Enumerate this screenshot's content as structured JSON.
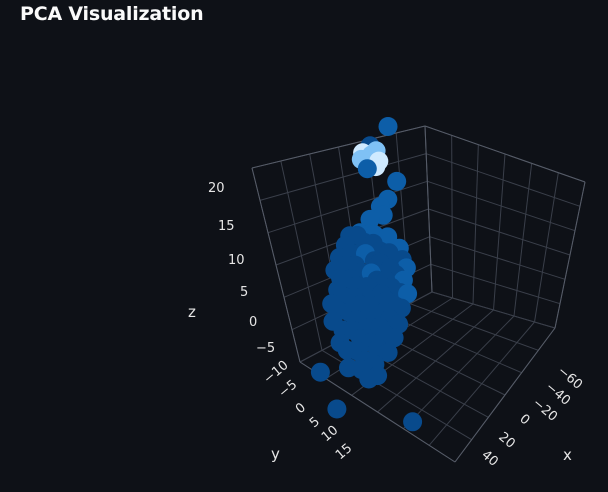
{
  "page": {
    "title": "PCA Visualization"
  },
  "colors": {
    "background": "#0e1117",
    "point_dark": "#084a8c",
    "point_mid": "#0d5ea8",
    "point_light": "#7fc1f5",
    "point_lightest": "#cfeaff"
  },
  "chart_data": {
    "type": "scatter",
    "projection": "3d",
    "title": "",
    "xlabel": "x",
    "ylabel": "y",
    "zlabel": "z",
    "x_ticks": [
      "−60",
      "−40",
      "−20",
      "0",
      "20",
      "40"
    ],
    "y_ticks": [
      "−10",
      "−5",
      "0",
      "5",
      "10",
      "15"
    ],
    "z_ticks": [
      "20",
      "15",
      "10",
      "5",
      "0",
      "−5"
    ],
    "xlim": [
      -65,
      45
    ],
    "ylim": [
      -12,
      18
    ],
    "zlim": [
      -8,
      22
    ],
    "grid": true,
    "legend": "none",
    "points": [
      {
        "x": 0,
        "y": 0,
        "z": 22.5,
        "shade": "mid"
      },
      {
        "x": -10,
        "y": 4,
        "z": 18.5,
        "shade": "light"
      },
      {
        "x": -8,
        "y": 3,
        "z": 19.0,
        "shade": "light"
      },
      {
        "x": -6,
        "y": 2,
        "z": 19.5,
        "shade": "light"
      },
      {
        "x": -4,
        "y": 4,
        "z": 18.0,
        "shade": "lightest"
      },
      {
        "x": -12,
        "y": 5,
        "z": 19.2,
        "shade": "lightest"
      },
      {
        "x": -9,
        "y": 3,
        "z": 20.0,
        "shade": "dark"
      },
      {
        "x": -14,
        "y": 4,
        "z": 18.2,
        "shade": "light"
      },
      {
        "x": -3,
        "y": 3,
        "z": 18.6,
        "shade": "lightest"
      },
      {
        "x": -11,
        "y": 3,
        "z": 17.2,
        "shade": "mid"
      },
      {
        "x": 6,
        "y": 0,
        "z": 16.5,
        "shade": "mid"
      },
      {
        "x": 1,
        "y": 1,
        "z": 14.2,
        "shade": "mid"
      },
      {
        "x": -3,
        "y": 2,
        "z": 13.2,
        "shade": "mid"
      },
      {
        "x": 0,
        "y": 3,
        "z": 12.5,
        "shade": "mid"
      },
      {
        "x": -8,
        "y": 4,
        "z": 11.6,
        "shade": "mid"
      },
      {
        "x": -9,
        "y": 4,
        "z": 9.8,
        "shade": "mid"
      },
      {
        "x": -15,
        "y": 4,
        "z": 9.6,
        "shade": "mid"
      },
      {
        "x": -4,
        "y": 5,
        "z": 10.2,
        "shade": "mid"
      },
      {
        "x": 2,
        "y": 2,
        "z": 10.0,
        "shade": "mid"
      },
      {
        "x": 10,
        "y": 2,
        "z": 9.2,
        "shade": "mid"
      },
      {
        "x": -22,
        "y": 4,
        "z": 8.8,
        "shade": "dark"
      },
      {
        "x": -18,
        "y": 3,
        "z": 9.0,
        "shade": "dark"
      },
      {
        "x": -13,
        "y": 3,
        "z": 8.5,
        "shade": "dark"
      },
      {
        "x": -8,
        "y": 2,
        "z": 8.6,
        "shade": "dark"
      },
      {
        "x": -2,
        "y": 3,
        "z": 8.2,
        "shade": "dark"
      },
      {
        "x": 4,
        "y": 3,
        "z": 8.4,
        "shade": "dark"
      },
      {
        "x": 12,
        "y": 2,
        "z": 8.0,
        "shade": "dark"
      },
      {
        "x": 16,
        "y": 3,
        "z": 7.4,
        "shade": "mid"
      },
      {
        "x": -25,
        "y": 4,
        "z": 7.5,
        "shade": "dark"
      },
      {
        "x": -20,
        "y": 5,
        "z": 7.0,
        "shade": "dark"
      },
      {
        "x": -15,
        "y": 4,
        "z": 7.2,
        "shade": "dark"
      },
      {
        "x": -10,
        "y": 5,
        "z": 7.6,
        "shade": "mid"
      },
      {
        "x": -5,
        "y": 4,
        "z": 7.0,
        "shade": "dark"
      },
      {
        "x": 0,
        "y": 5,
        "z": 7.2,
        "shade": "dark"
      },
      {
        "x": 6,
        "y": 4,
        "z": 6.8,
        "shade": "dark"
      },
      {
        "x": 11,
        "y": 5,
        "z": 6.5,
        "shade": "dark"
      },
      {
        "x": 15,
        "y": 4,
        "z": 6.0,
        "shade": "mid"
      },
      {
        "x": -28,
        "y": 5,
        "z": 6.0,
        "shade": "dark"
      },
      {
        "x": -22,
        "y": 6,
        "z": 5.6,
        "shade": "dark"
      },
      {
        "x": -17,
        "y": 5,
        "z": 5.8,
        "shade": "dark"
      },
      {
        "x": -12,
        "y": 6,
        "z": 5.4,
        "shade": "dark"
      },
      {
        "x": -6,
        "y": 5,
        "z": 5.6,
        "shade": "mid"
      },
      {
        "x": -1,
        "y": 6,
        "z": 5.2,
        "shade": "dark"
      },
      {
        "x": 4,
        "y": 5,
        "z": 5.4,
        "shade": "dark"
      },
      {
        "x": 9,
        "y": 6,
        "z": 5.0,
        "shade": "dark"
      },
      {
        "x": 14,
        "y": 5,
        "z": 4.6,
        "shade": "dark"
      },
      {
        "x": 19,
        "y": 5,
        "z": 4.8,
        "shade": "mid"
      },
      {
        "x": -30,
        "y": 6,
        "z": 4.5,
        "shade": "dark"
      },
      {
        "x": -25,
        "y": 7,
        "z": 4.0,
        "shade": "dark"
      },
      {
        "x": -19,
        "y": 6,
        "z": 4.2,
        "shade": "dark"
      },
      {
        "x": -14,
        "y": 7,
        "z": 3.8,
        "shade": "dark"
      },
      {
        "x": -8,
        "y": 6,
        "z": 4.0,
        "shade": "dark"
      },
      {
        "x": -3,
        "y": 7,
        "z": 3.6,
        "shade": "dark"
      },
      {
        "x": 2,
        "y": 6,
        "z": 3.8,
        "shade": "dark"
      },
      {
        "x": 7,
        "y": 7,
        "z": 3.4,
        "shade": "dark"
      },
      {
        "x": 12,
        "y": 6,
        "z": 3.0,
        "shade": "dark"
      },
      {
        "x": 17,
        "y": 7,
        "z": 3.2,
        "shade": "dark"
      },
      {
        "x": -27,
        "y": 7,
        "z": 2.5,
        "shade": "dark"
      },
      {
        "x": -21,
        "y": 8,
        "z": 2.2,
        "shade": "dark"
      },
      {
        "x": -16,
        "y": 7,
        "z": 2.4,
        "shade": "dark"
      },
      {
        "x": -10,
        "y": 8,
        "z": 2.0,
        "shade": "dark"
      },
      {
        "x": -5,
        "y": 7,
        "z": 2.2,
        "shade": "dark"
      },
      {
        "x": 0,
        "y": 8,
        "z": 1.8,
        "shade": "dark"
      },
      {
        "x": 5,
        "y": 7,
        "z": 2.0,
        "shade": "dark"
      },
      {
        "x": 10,
        "y": 8,
        "z": 1.6,
        "shade": "dark"
      },
      {
        "x": 15,
        "y": 7,
        "z": 1.2,
        "shade": "dark"
      },
      {
        "x": -30,
        "y": 8,
        "z": 0.8,
        "shade": "dark"
      },
      {
        "x": -24,
        "y": 9,
        "z": 0.5,
        "shade": "dark"
      },
      {
        "x": -18,
        "y": 8,
        "z": 0.6,
        "shade": "dark"
      },
      {
        "x": -12,
        "y": 9,
        "z": 0.2,
        "shade": "dark"
      },
      {
        "x": -7,
        "y": 8,
        "z": 0.4,
        "shade": "dark"
      },
      {
        "x": -2,
        "y": 9,
        "z": 0.0,
        "shade": "dark"
      },
      {
        "x": 3,
        "y": 8,
        "z": 0.2,
        "shade": "dark"
      },
      {
        "x": 8,
        "y": 9,
        "z": -0.2,
        "shade": "dark"
      },
      {
        "x": 13,
        "y": 8,
        "z": -0.4,
        "shade": "dark"
      },
      {
        "x": -28,
        "y": 9,
        "z": -1.0,
        "shade": "dark"
      },
      {
        "x": -20,
        "y": 10,
        "z": -1.4,
        "shade": "dark"
      },
      {
        "x": -14,
        "y": 9,
        "z": -1.2,
        "shade": "dark"
      },
      {
        "x": -8,
        "y": 10,
        "z": -1.6,
        "shade": "dark"
      },
      {
        "x": -2,
        "y": 9,
        "z": -1.8,
        "shade": "dark"
      },
      {
        "x": 4,
        "y": 10,
        "z": -2.0,
        "shade": "dark"
      },
      {
        "x": 10,
        "y": 9,
        "z": -2.2,
        "shade": "dark"
      },
      {
        "x": -22,
        "y": 10,
        "z": -3.0,
        "shade": "dark"
      },
      {
        "x": -16,
        "y": 11,
        "z": -3.4,
        "shade": "dark"
      },
      {
        "x": -10,
        "y": 10,
        "z": -3.2,
        "shade": "dark"
      },
      {
        "x": -4,
        "y": 11,
        "z": -3.8,
        "shade": "dark"
      },
      {
        "x": 2,
        "y": 10,
        "z": -4.0,
        "shade": "dark"
      },
      {
        "x": -14,
        "y": 12,
        "z": -5.2,
        "shade": "dark"
      },
      {
        "x": -6,
        "y": 11,
        "z": -5.0,
        "shade": "dark"
      },
      {
        "x": 0,
        "y": 12,
        "z": -5.6,
        "shade": "dark"
      },
      {
        "x": 5,
        "y": 11,
        "z": -5.0,
        "shade": "dark"
      },
      {
        "x": -40,
        "y": 6,
        "z": -8.0,
        "shade": "dark"
      },
      {
        "x": -22,
        "y": 12,
        "z": -10.5,
        "shade": "dark"
      },
      {
        "x": 28,
        "y": 10,
        "z": -9.0,
        "shade": "dark"
      }
    ]
  }
}
